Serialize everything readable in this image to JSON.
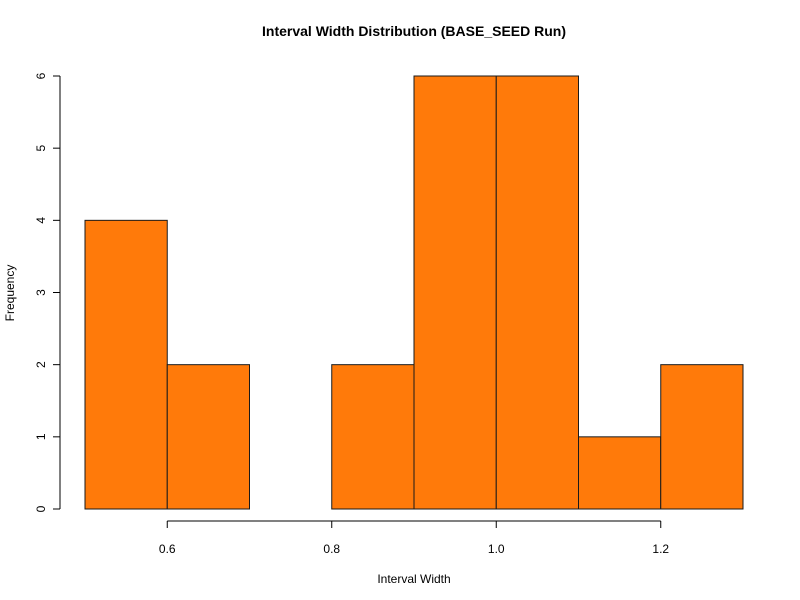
{
  "chart_data": {
    "type": "bar",
    "title": "Interval Width Distribution (BASE_SEED Run)",
    "xlabel": "Interval Width",
    "ylabel": "Frequency",
    "bins": [
      {
        "start": 0.5,
        "end": 0.6,
        "value": 4
      },
      {
        "start": 0.6,
        "end": 0.7,
        "value": 2
      },
      {
        "start": 0.7,
        "end": 0.8,
        "value": 0
      },
      {
        "start": 0.8,
        "end": 0.9,
        "value": 2
      },
      {
        "start": 0.9,
        "end": 1.0,
        "value": 6
      },
      {
        "start": 1.0,
        "end": 1.1,
        "value": 6
      },
      {
        "start": 1.1,
        "end": 1.2,
        "value": 1
      },
      {
        "start": 1.2,
        "end": 1.3,
        "value": 2
      }
    ],
    "xlim": [
      0.5,
      1.3
    ],
    "ylim": [
      0,
      6
    ],
    "x_ticks": [
      {
        "value": 0.6,
        "label": "0.6"
      },
      {
        "value": 0.8,
        "label": "0.8"
      },
      {
        "value": 1.0,
        "label": "1.0"
      },
      {
        "value": 1.2,
        "label": "1.2"
      }
    ],
    "y_ticks": [
      {
        "value": 0,
        "label": "0"
      },
      {
        "value": 1,
        "label": "1"
      },
      {
        "value": 2,
        "label": "2"
      },
      {
        "value": 3,
        "label": "3"
      },
      {
        "value": 4,
        "label": "4"
      },
      {
        "value": 5,
        "label": "5"
      },
      {
        "value": 6,
        "label": "6"
      }
    ],
    "grid": false,
    "colors": {
      "bar_fill": "#ff7a0a",
      "bar_stroke": "#1a1a1a",
      "axis": "#000000"
    }
  }
}
